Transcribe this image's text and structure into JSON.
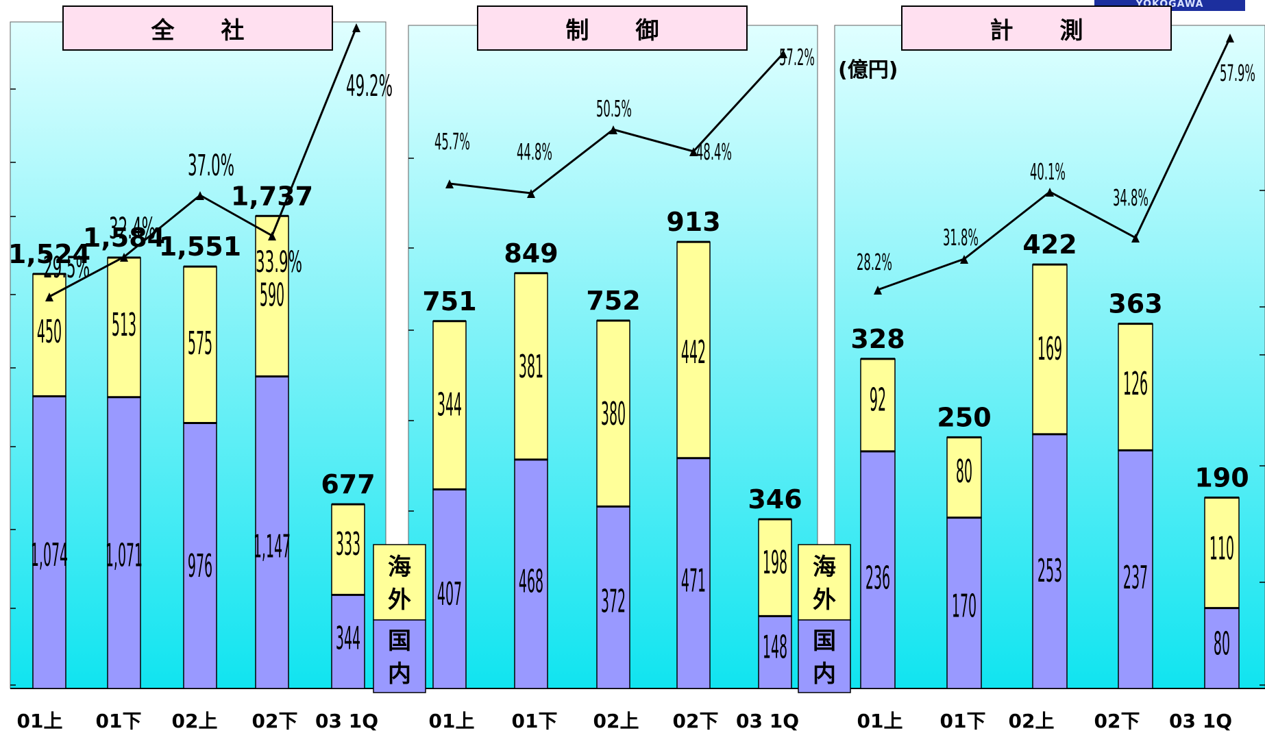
{
  "logo_text": "YOKOGAWA",
  "unit_label": "(億円)",
  "legend": {
    "overseas": "海外",
    "domestic": "国内"
  },
  "colors": {
    "panel_top": "#e0ffff",
    "panel_bottom": "#10e4f0",
    "domestic": "#9999ff",
    "overseas": "#ffff99",
    "title_fill": "#ffe0f0",
    "line": "#000000"
  },
  "chart_data": [
    {
      "type": "bar",
      "title": "全　　社",
      "categories": [
        "01上",
        "01下",
        "02上",
        "02下",
        "03 1Q"
      ],
      "stacked": true,
      "series": [
        {
          "name": "国内",
          "values": [
            1074,
            1071,
            976,
            1147,
            344
          ],
          "labels": [
            "1,074",
            "1,071",
            "976",
            "1,147",
            "344"
          ]
        },
        {
          "name": "海外",
          "values": [
            450,
            513,
            575,
            590,
            333
          ],
          "labels": [
            "450",
            "513",
            "575",
            "590",
            "333"
          ]
        }
      ],
      "totals": [
        "1,524",
        "1,584",
        "1,551",
        "1,737",
        "677"
      ],
      "ratio_line": {
        "values": [
          29.5,
          32.4,
          37.0,
          33.9,
          49.2
        ],
        "labels": [
          "29.5%",
          "32.4%",
          "37.0%",
          "33.9%",
          "49.2%"
        ]
      },
      "ylim": [
        0,
        2050
      ]
    },
    {
      "type": "bar",
      "title": "制　　御",
      "categories": [
        "01上",
        "01下",
        "02上",
        "02下",
        "03 1Q"
      ],
      "stacked": true,
      "series": [
        {
          "name": "国内",
          "values": [
            407,
            468,
            372,
            471,
            148
          ],
          "labels": [
            "407",
            "468",
            "372",
            "471",
            "148"
          ]
        },
        {
          "name": "海外",
          "values": [
            344,
            381,
            380,
            442,
            198
          ],
          "labels": [
            "344",
            "381",
            "380",
            "442",
            "198"
          ]
        }
      ],
      "totals": [
        "751",
        "849",
        "752",
        "913",
        "346"
      ],
      "ratio_line": {
        "values": [
          45.7,
          44.8,
          50.5,
          48.4,
          57.2
        ],
        "labels": [
          "45.7%",
          "44.8%",
          "50.5%",
          "48.4%",
          "57.2%"
        ]
      },
      "ylim": [
        0,
        1140
      ]
    },
    {
      "type": "bar",
      "title": "計　　測",
      "categories": [
        "01上",
        "01下",
        "02上",
        "02下",
        "03 1Q"
      ],
      "stacked": true,
      "series": [
        {
          "name": "国内",
          "values": [
            236,
            170,
            253,
            237,
            80
          ],
          "labels": [
            "236",
            "170",
            "253",
            "237",
            "80"
          ]
        },
        {
          "name": "海外",
          "values": [
            92,
            80,
            169,
            126,
            110
          ],
          "labels": [
            "92",
            "80",
            "169",
            "126",
            "110"
          ]
        }
      ],
      "totals": [
        "328",
        "250",
        "422",
        "363",
        "190"
      ],
      "ratio_line": {
        "values": [
          28.2,
          31.8,
          40.1,
          34.8,
          57.9
        ],
        "labels": [
          "28.2%",
          "31.8%",
          "40.1%",
          "34.8%",
          "57.9%"
        ]
      },
      "ylim": [
        0,
        555
      ]
    }
  ]
}
